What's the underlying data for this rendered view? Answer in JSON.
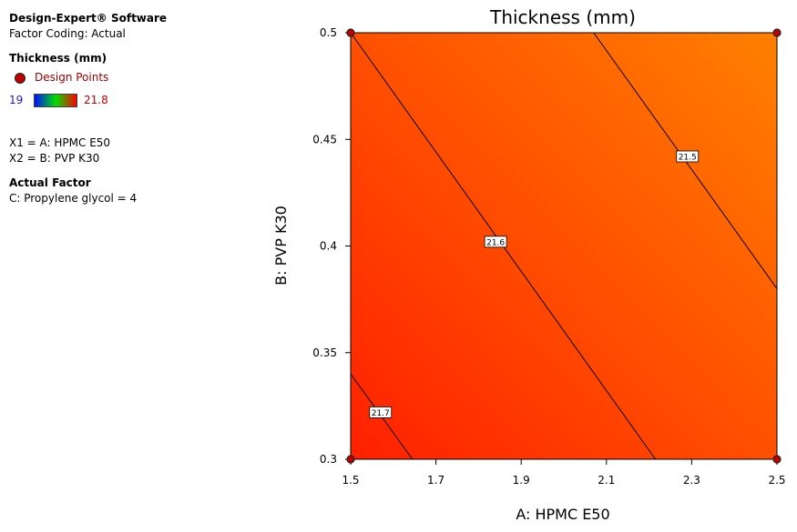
{
  "legend": {
    "software": "Design-Expert® Software",
    "coding": "Factor Coding: Actual",
    "response": "Thickness (mm)",
    "design_points_label": "Design Points",
    "scale_min": "19",
    "scale_max": "21.8",
    "x1": "X1 = A: HPMC E50",
    "x2": "X2 = B: PVP K30",
    "actual_factor_title": "Actual Factor",
    "actual_factor": "C: Propylene glycol = 4"
  },
  "chart_data": {
    "type": "contour",
    "title": "Thickness (mm)",
    "xlabel": "A: HPMC E50",
    "ylabel": "B: PVP K30",
    "xlim": [
      1.5,
      2.5
    ],
    "ylim": [
      0.3,
      0.5
    ],
    "xticks": [
      "1.5",
      "1.7",
      "1.9",
      "2.1",
      "2.3",
      "2.5"
    ],
    "yticks": [
      "0.3",
      "0.35",
      "0.4",
      "0.45",
      "0.5"
    ],
    "fill_colors": [
      "#ff2000",
      "#ff8000"
    ],
    "contours": [
      {
        "label": "21.7",
        "points": [
          [
            1.5,
            0.34
          ],
          [
            1.645,
            0.3
          ]
        ],
        "label_at": [
          1.57,
          0.322
        ]
      },
      {
        "label": "21.6",
        "points": [
          [
            1.5,
            0.5
          ],
          [
            2.215,
            0.3
          ]
        ],
        "label_at": [
          1.84,
          0.402
        ]
      },
      {
        "label": "21.5",
        "points": [
          [
            2.07,
            0.5
          ],
          [
            2.5,
            0.38
          ]
        ],
        "label_at": [
          2.29,
          0.442
        ]
      }
    ],
    "design_points": [
      [
        1.5,
        0.5
      ],
      [
        2.5,
        0.5
      ],
      [
        1.5,
        0.3
      ],
      [
        2.5,
        0.3
      ]
    ]
  }
}
